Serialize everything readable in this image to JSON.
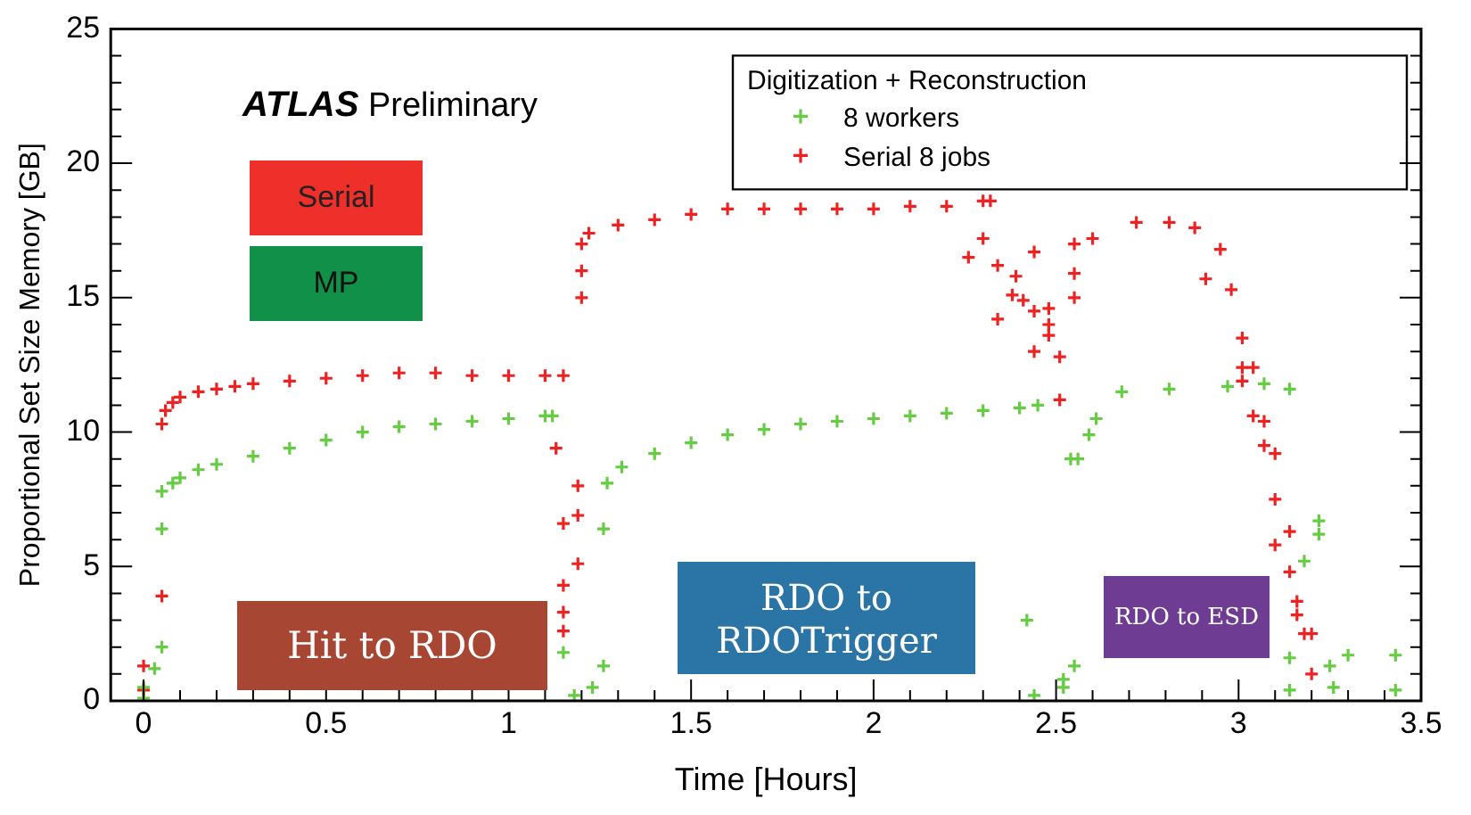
{
  "chart_data": {
    "type": "scatter",
    "xlabel": "Time [Hours]",
    "ylabel": "Proportional Set Size Memory [GB]",
    "legend_title": "Digitization + Reconstruction",
    "legend": "top right",
    "marker": "cross",
    "grid": false,
    "xlim": [
      -0.09,
      3.5
    ],
    "xticks": [
      0,
      0.5,
      1,
      1.5,
      2,
      2.5,
      3,
      3.5
    ],
    "ylim": [
      0,
      25
    ],
    "yticks": [
      0,
      5,
      10,
      15,
      20,
      25
    ],
    "annotations": [
      "ATLAS Preliminary",
      "Serial",
      "MP",
      "Hit to RDO",
      "RDO to RDOTrigger",
      "RDO to ESD"
    ],
    "series": [
      {
        "name": "8 workers",
        "color": "#66cc44",
        "x": [
          0,
          0,
          0.03,
          0.05,
          0.05,
          0.05,
          0.08,
          0.1,
          0.15,
          0.2,
          0.3,
          0.4,
          0.5,
          0.6,
          0.7,
          0.8,
          0.9,
          1.0,
          1.1,
          1.12,
          1.15,
          1.18,
          1.23,
          1.26,
          1.26,
          1.27,
          1.31,
          1.4,
          1.5,
          1.6,
          1.7,
          1.8,
          1.9,
          2.0,
          2.1,
          2.2,
          2.3,
          2.4,
          2.45,
          2.42,
          2.44,
          2.52,
          2.52,
          2.55,
          2.54,
          2.56,
          2.59,
          2.61,
          2.68,
          2.81,
          2.97,
          3.07,
          3.14,
          3.22,
          3.22,
          3.18,
          3.14,
          3.14,
          3.25,
          3.26,
          3.3,
          3.43,
          3.43
        ],
        "values": [
          0.1,
          0.5,
          1.2,
          2.0,
          6.4,
          7.8,
          8.1,
          8.3,
          8.6,
          8.8,
          9.1,
          9.4,
          9.7,
          10.0,
          10.2,
          10.3,
          10.4,
          10.5,
          10.6,
          10.6,
          1.8,
          0.2,
          0.5,
          1.3,
          6.4,
          8.1,
          8.7,
          9.2,
          9.6,
          9.9,
          10.1,
          10.3,
          10.4,
          10.5,
          10.6,
          10.7,
          10.8,
          10.9,
          11.0,
          3.0,
          0.2,
          0.8,
          0.5,
          1.3,
          9.0,
          9.0,
          9.9,
          10.5,
          11.5,
          11.6,
          11.7,
          11.8,
          11.6,
          6.7,
          6.2,
          5.2,
          1.6,
          0.4,
          1.3,
          0.5,
          1.7,
          1.7,
          0.4
        ]
      },
      {
        "name": "Serial 8 jobs",
        "color": "#ee2222",
        "x": [
          0,
          0,
          0.05,
          0.05,
          0.06,
          0.08,
          0.1,
          0.15,
          0.2,
          0.25,
          0.3,
          0.4,
          0.5,
          0.6,
          0.7,
          0.8,
          0.9,
          1.0,
          1.1,
          1.15,
          1.13,
          1.19,
          1.19,
          1.15,
          1.19,
          1.15,
          1.15,
          1.15,
          1.2,
          1.2,
          1.2,
          1.22,
          1.3,
          1.4,
          1.5,
          1.6,
          1.7,
          1.8,
          1.9,
          2.0,
          2.1,
          2.2,
          2.3,
          2.32,
          2.3,
          2.26,
          2.34,
          2.39,
          2.44,
          2.38,
          2.41,
          2.34,
          2.44,
          2.48,
          2.48,
          2.48,
          2.44,
          2.51,
          2.51,
          2.55,
          2.55,
          2.55,
          2.6,
          2.72,
          2.81,
          2.88,
          2.95,
          2.91,
          2.98,
          3.01,
          3.01,
          3.04,
          3.01,
          3.04,
          3.07,
          3.07,
          3.1,
          3.1,
          3.1,
          3.14,
          3.14,
          3.16,
          3.16,
          3.2,
          3.18,
          3.2
        ],
        "values": [
          0.4,
          1.3,
          3.9,
          10.3,
          10.8,
          11.1,
          11.3,
          11.5,
          11.6,
          11.7,
          11.8,
          11.9,
          12.0,
          12.1,
          12.2,
          12.2,
          12.1,
          12.1,
          12.1,
          12.1,
          9.4,
          8.0,
          6.9,
          6.6,
          5.1,
          4.3,
          3.3,
          2.6,
          15.0,
          16.0,
          17.0,
          17.4,
          17.7,
          17.9,
          18.1,
          18.3,
          18.3,
          18.3,
          18.3,
          18.3,
          18.4,
          18.4,
          18.6,
          18.6,
          17.2,
          16.5,
          16.2,
          15.8,
          16.7,
          15.1,
          14.9,
          14.2,
          14.5,
          14.6,
          14.0,
          13.6,
          13.0,
          12.8,
          11.2,
          15.9,
          15.0,
          17.0,
          17.2,
          17.8,
          17.8,
          17.6,
          16.8,
          15.7,
          15.3,
          13.5,
          12.4,
          12.4,
          11.9,
          10.6,
          10.4,
          9.5,
          9.2,
          7.5,
          5.8,
          6.3,
          4.8,
          3.7,
          3.2,
          2.5,
          2.5,
          1.0
        ]
      }
    ]
  }
}
